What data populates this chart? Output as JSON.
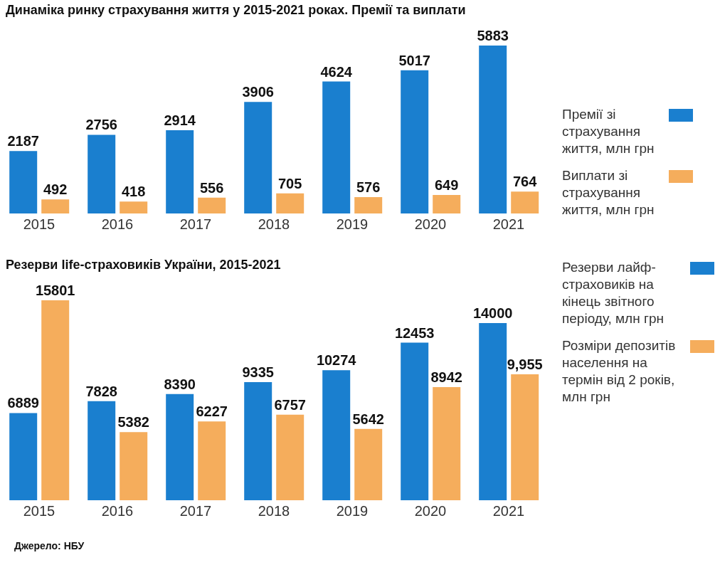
{
  "chart_data": [
    {
      "type": "bar",
      "title": "Динаміка ринку страхування життя у 2015-2021 роках. Премії та виплати",
      "categories": [
        "2015",
        "2016",
        "2017",
        "2018",
        "2019",
        "2020",
        "2021"
      ],
      "series": [
        {
          "name": "Премії зі страхування життя, млн грн",
          "color": "#1a7fcf",
          "values": [
            2187,
            2756,
            2914,
            3906,
            4624,
            5017,
            5883
          ]
        },
        {
          "name": "Виплати зі страхування життя, млн грн",
          "color": "#f5ad5c",
          "values": [
            492,
            418,
            556,
            705,
            576,
            649,
            764
          ]
        }
      ],
      "data_labels": true,
      "legend": "right",
      "tick_labels": "x",
      "grid": false
    },
    {
      "type": "bar",
      "title": "Резерви life-страховиків України, 2015-2021",
      "categories": [
        "2015",
        "2016",
        "2017",
        "2018",
        "2019",
        "2020",
        "2021"
      ],
      "series": [
        {
          "name": "Резерви лайф-страховиків на кінець звітного періоду, млн грн",
          "color": "#1a7fcf",
          "values": [
            6889,
            7828,
            8390,
            9335,
            10274,
            12453,
            14000
          ],
          "value_labels": [
            "6889",
            "7828",
            "8390",
            "9335",
            "10274",
            "12453",
            "14000"
          ]
        },
        {
          "name": "Розміри депозитів населення на термін від 2 років, млн грн",
          "color": "#f5ad5c",
          "values": [
            15801,
            5382,
            6227,
            6757,
            5642,
            8942,
            9955
          ],
          "value_labels": [
            "15801",
            "5382",
            "6227",
            "6757",
            "5642",
            "8942",
            "9,955"
          ]
        }
      ],
      "legend": "right",
      "tick_labels": "x",
      "grid": false,
      "annotations": [
        "Джерело: НБУ"
      ]
    }
  ]
}
